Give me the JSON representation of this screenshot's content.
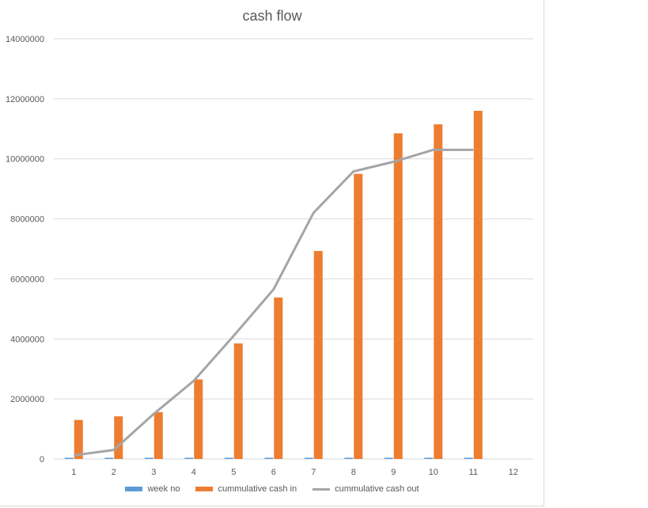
{
  "chart_data": {
    "type": "bar",
    "title": "cash flow",
    "categories": [
      "1",
      "2",
      "3",
      "4",
      "5",
      "6",
      "7",
      "8",
      "9",
      "10",
      "11",
      "12"
    ],
    "series": [
      {
        "name": "week no",
        "kind": "bar",
        "color": "#5b9bd5",
        "values": [
          1,
          2,
          3,
          4,
          5,
          6,
          7,
          8,
          9,
          10,
          11,
          null
        ]
      },
      {
        "name": "cummulative cash in",
        "kind": "bar",
        "color": "#ed7d31",
        "values": [
          1300000,
          1420000,
          1560000,
          2650000,
          3850000,
          5380000,
          6930000,
          9500000,
          10850000,
          11150000,
          11600000,
          null
        ]
      },
      {
        "name": "cummulative cash out",
        "kind": "line",
        "color": "#a5a5a5",
        "values": [
          120000,
          300000,
          1500000,
          2600000,
          4100000,
          5650000,
          8200000,
          9580000,
          9900000,
          10300000,
          10300000,
          null
        ]
      }
    ],
    "ylim": [
      0,
      14000000
    ],
    "yticks": [
      "0",
      "2000000",
      "4000000",
      "6000000",
      "8000000",
      "10000000",
      "12000000",
      "14000000"
    ],
    "ytick_values": [
      0,
      2000000,
      4000000,
      6000000,
      8000000,
      10000000,
      12000000,
      14000000
    ],
    "grid": true,
    "legend_position": "bottom"
  }
}
